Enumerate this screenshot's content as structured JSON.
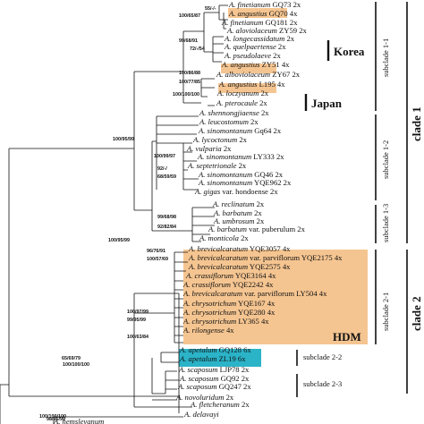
{
  "colors": {
    "orange_highlight": "#f5c591",
    "cyan_highlight": "#2bb3c8",
    "line": "#111111"
  },
  "tree": {
    "taxa": [
      {
        "name": "A. finetianum",
        "suffix": "GQ73 2x"
      },
      {
        "name": "A. angustius",
        "suffix": "GQ70 4x"
      },
      {
        "name": "A. finetianum",
        "suffix": "GQ181 2x"
      },
      {
        "name": "A. aloviolaceum",
        "suffix": "ZY59 2x"
      },
      {
        "name": "A. longecassidatum",
        "suffix": "2x"
      },
      {
        "name": "A. quelpaertense",
        "suffix": "2x"
      },
      {
        "name": "A. pseudolaeve",
        "suffix": "2x"
      },
      {
        "name": "A. angustius",
        "suffix": "ZY51 4x"
      },
      {
        "name": "A. alboviolaceum",
        "suffix": "ZY67 2x"
      },
      {
        "name": "A. angustius",
        "suffix": "L195 4x"
      },
      {
        "name": "A. loczyanum",
        "suffix": "2x"
      },
      {
        "name": "A. pterocaule",
        "suffix": "2x"
      },
      {
        "name": "A. shennongjiaense",
        "suffix": "2x"
      },
      {
        "name": "A. leucostomum",
        "suffix": "2x"
      },
      {
        "name": "A. sinomontanum",
        "suffix": "Gq64 2x"
      },
      {
        "name": "A. lycoctonum",
        "suffix": "2x"
      },
      {
        "name": "A. vulparia",
        "suffix": "2x"
      },
      {
        "name": "A. sinomontanum",
        "suffix": "LY333 2x"
      },
      {
        "name": "A. septetrionale",
        "suffix": "2x"
      },
      {
        "name": "A. sinomontanum",
        "suffix": "GQ46 2x"
      },
      {
        "name": "A. sinomontanum",
        "suffix": "YQE962 2x"
      },
      {
        "name": "A. gigas",
        "suffix": "var. hondoense 2x"
      },
      {
        "name": "A. reclinatum",
        "suffix": "2x"
      },
      {
        "name": "A. barbatum",
        "suffix": "2x"
      },
      {
        "name": "A. umbrosum",
        "suffix": "2x"
      },
      {
        "name": "A. barbatum",
        "suffix": "var. puberulum 2x"
      },
      {
        "name": "A. monticola",
        "suffix": "2x"
      },
      {
        "name": "A. brevicalcaratum",
        "suffix": "YQE3057 4x"
      },
      {
        "name": "A. brevicalcaratum",
        "suffix": "var. parviflorum YQE2175 4x"
      },
      {
        "name": "A. brevicalcaratum",
        "suffix": "YQE2575 4x"
      },
      {
        "name": "A. crassiflorum",
        "suffix": "YQE3164 4x"
      },
      {
        "name": "A. crassiflorum",
        "suffix": "YQE2242 4x"
      },
      {
        "name": "A. brevicalcaratum",
        "suffix": "var. parviflorum LY504 4x"
      },
      {
        "name": "A. chrysotrichum",
        "suffix": "YQE167 4x"
      },
      {
        "name": "A. chrysotrichum",
        "suffix": "YQE280 4x"
      },
      {
        "name": "A. chrysotrichum",
        "suffix": "LY365 4x"
      },
      {
        "name": "A. rilongense",
        "suffix": "4x"
      },
      {
        "name": "A. apetalum",
        "suffix": "GQ128 6x"
      },
      {
        "name": "A. apetalum",
        "suffix": "ZL19 6x"
      },
      {
        "name": "A. scaposum",
        "suffix": "LJP78 2x"
      },
      {
        "name": "A. scaposum",
        "suffix": "GQ92 2x"
      },
      {
        "name": "A. scaposum",
        "suffix": "GQ247 2x"
      },
      {
        "name": "A. novoluridum",
        "suffix": "2x"
      },
      {
        "name": "A. fletcheranum",
        "suffix": "2x"
      },
      {
        "name": "A. delavayi",
        "suffix": ""
      },
      {
        "name": "A. hemsleyanum",
        "suffix": ""
      }
    ],
    "supports": [
      "55/-/-",
      "100/65/87",
      "99/68/91",
      "72/-/54",
      "100/86/88",
      "100/77/85",
      "100/100/100",
      "100/95/99",
      "100/99/97",
      "92/-/",
      "68/59/59",
      "99/68/98",
      "92/82/84",
      "100/95/99",
      "96/76/91",
      "100/57/69",
      "100/97/99",
      "99/95/99",
      "100/63/84",
      "100/100/100",
      "65/69/79",
      "100/100/100",
      "98/95/99"
    ],
    "region_labels": {
      "korea": "Korea",
      "japan": "Japan",
      "hdm": "HDM"
    },
    "subclades": [
      "subclade 1-1",
      "subclade 1-2",
      "subclade 1-3",
      "subclade 2-1",
      "subclade 2-2",
      "subclade 2-3"
    ],
    "clades": [
      "clade 1",
      "clade 2"
    ]
  }
}
